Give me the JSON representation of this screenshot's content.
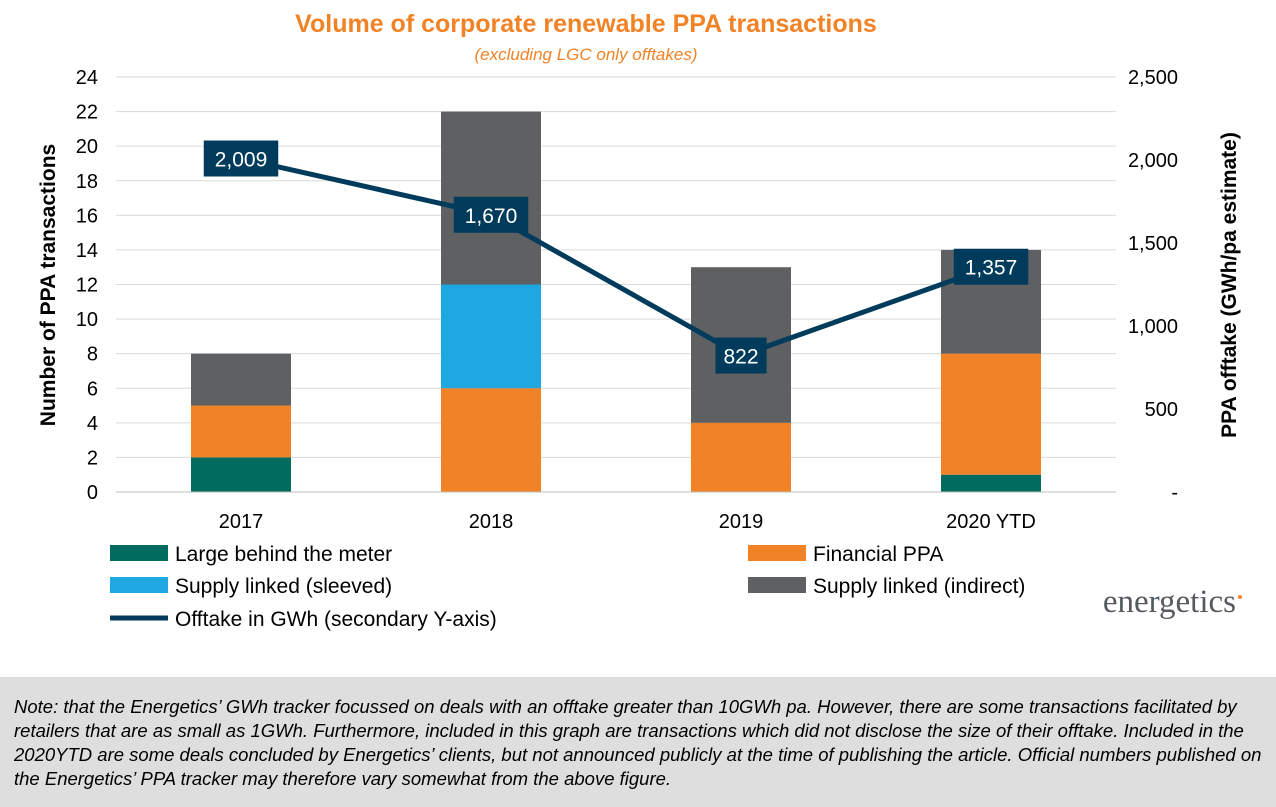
{
  "chart_data": {
    "type": "bar",
    "stacked": true,
    "title": "Volume of corporate renewable PPA transactions",
    "subtitle": "(excluding LGC only offtakes)",
    "categories": [
      "2017",
      "2018",
      "2019",
      "2020 YTD"
    ],
    "ylabel": "Number of PPA transactions",
    "ylim": [
      0,
      24
    ],
    "yticks": [
      "0",
      "2",
      "4",
      "6",
      "8",
      "10",
      "12",
      "14",
      "16",
      "18",
      "20",
      "22",
      "24"
    ],
    "y2label": "PPA offtake (GWh/pa estimate)",
    "y2lim": [
      0,
      2500
    ],
    "y2ticks": [
      "-",
      "500",
      "1,000",
      "1,500",
      "2,000",
      "2,500"
    ],
    "grid": true,
    "series": [
      {
        "name": "Large behind the meter",
        "values": [
          2,
          0,
          0,
          1
        ],
        "color": "#006b5e"
      },
      {
        "name": "Financial PPA",
        "values": [
          3,
          6,
          4,
          7
        ],
        "color": "#f28226"
      },
      {
        "name": "Supply linked (sleeved)",
        "values": [
          0,
          6,
          0,
          0
        ],
        "color": "#1ea7e1"
      },
      {
        "name": "Supply linked (indirect)",
        "values": [
          3,
          10,
          9,
          6
        ],
        "color": "#5f6062"
      }
    ],
    "line_series": {
      "name": "Offtake in GWh (secondary Y-axis)",
      "values": [
        2009,
        1670,
        822,
        1357
      ],
      "labels": [
        "2,009",
        "1,670",
        "822",
        "1,357"
      ],
      "color": "#003b5c",
      "axis": "secondary"
    },
    "legend_position": "bottom",
    "title_color": "#f28226"
  },
  "logo_text": "energetics",
  "note": "Note: that the Energetics’ GWh tracker focussed on deals with an offtake greater than 10GWh pa. However, there are some transactions facilitated by retailers that are as small as 1GWh. Furthermore, included in this graph are transactions which did not disclose the size of their offtake. Included in the 2020YTD are some deals concluded by Energetics’ clients, but not announced publicly at the time of publishing the article. Official numbers published on the Energetics’ PPA tracker may therefore vary somewhat from the above figure."
}
